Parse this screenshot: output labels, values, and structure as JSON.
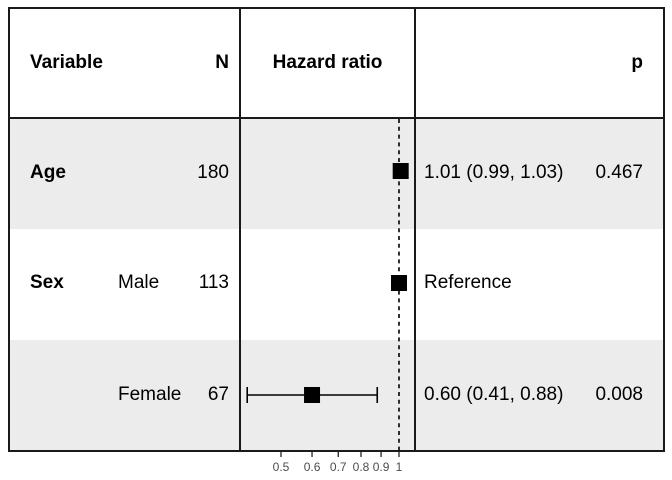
{
  "table": {
    "headers": {
      "variable": "Variable",
      "n": "N",
      "hazard_ratio": "Hazard ratio",
      "p": "p"
    },
    "rows": [
      {
        "variable": "Age",
        "level": "",
        "n": "180",
        "estimate": "1.01 (0.99, 1.03)",
        "p": "0.467"
      },
      {
        "variable": "Sex",
        "level": "Male",
        "n": "113",
        "estimate": "Reference",
        "p": ""
      },
      {
        "variable": "",
        "level": "Female",
        "n": "67",
        "estimate": "0.60 (0.41, 0.88)",
        "p": "0.008"
      }
    ]
  },
  "chart_data": {
    "type": "scatter",
    "subtype": "forest_plot",
    "title": "",
    "xlabel": "",
    "x_scale": "log10",
    "xlim": [
      0.44,
      1.1
    ],
    "x_ticks": [
      0.5,
      0.6,
      0.7,
      0.8,
      0.9,
      1
    ],
    "x_tick_labels": [
      "0.5",
      "0.6",
      "0.7",
      "0.8",
      "0.9",
      "1"
    ],
    "reference_line_x": 1,
    "grid": "off",
    "marker": "filled-square",
    "marker_color": "#000000",
    "series": [
      {
        "row": "Age",
        "n": 180,
        "hr": 1.01,
        "ci_low": 0.99,
        "ci_high": 1.03,
        "p": 0.467,
        "estimate_label": "1.01 (0.99, 1.03)"
      },
      {
        "row": "Sex: Male",
        "n": 113,
        "hr": 1.0,
        "ci_low": null,
        "ci_high": null,
        "p": null,
        "estimate_label": "Reference"
      },
      {
        "row": "Sex: Female",
        "n": 67,
        "hr": 0.6,
        "ci_low": 0.41,
        "ci_high": 0.88,
        "p": 0.008,
        "estimate_label": "0.60 (0.41, 0.88)"
      }
    ]
  },
  "colors": {
    "stripe": "#ececec",
    "line": "#000000",
    "border": "#1a1a1a",
    "axis_text": "#4d4d4d"
  }
}
